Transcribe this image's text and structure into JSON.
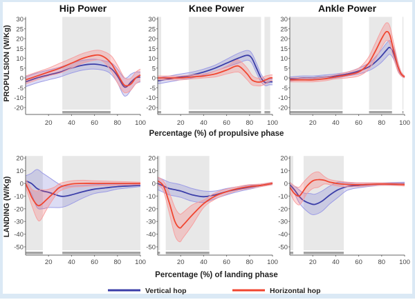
{
  "chart_data": [
    {
      "type": "line",
      "title": "Hip Power",
      "row": "propulsion",
      "ylabel": "PROPULSION (W/Kg)",
      "xlabel": "Percentage (%) of propulsive phase",
      "xlim": [
        0,
        100
      ],
      "yticks": [
        30,
        25,
        20,
        15,
        10,
        5,
        0,
        -5,
        -10,
        -20
      ],
      "xticks": [
        20,
        40,
        60,
        80,
        100
      ],
      "shaded_regions": [
        [
          32,
          74
        ]
      ],
      "series": [
        {
          "name": "Vertical hop",
          "x": [
            0,
            10,
            20,
            30,
            40,
            50,
            60,
            70,
            75,
            80,
            85,
            88,
            92,
            96,
            100
          ],
          "y": [
            -2,
            0,
            1.5,
            3,
            5,
            6.5,
            7,
            6,
            4.5,
            1,
            -4,
            -4.5,
            -2,
            0,
            0.5
          ],
          "sd": [
            2.5,
            2.5,
            2.5,
            2.5,
            2.5,
            2.5,
            2.5,
            2.5,
            3,
            3.5,
            4.5,
            4.5,
            4,
            3,
            2.5
          ]
        },
        {
          "name": "Horizontal hop",
          "x": [
            0,
            10,
            20,
            30,
            40,
            50,
            60,
            65,
            70,
            75,
            80,
            85,
            88,
            92,
            96,
            100
          ],
          "y": [
            -1,
            1,
            3,
            5,
            7.5,
            10,
            11.5,
            11.5,
            10,
            7,
            2,
            -3,
            -4,
            -3,
            0,
            1.5
          ],
          "sd": [
            2,
            2,
            2,
            2.5,
            2.5,
            2.5,
            2.5,
            2.5,
            3,
            4,
            4.5,
            4,
            3.5,
            3,
            3,
            3
          ]
        }
      ]
    },
    {
      "type": "line",
      "title": "Knee Power",
      "row": "propulsion",
      "xlim": [
        0,
        100
      ],
      "yticks": [
        30,
        25,
        20,
        15,
        10,
        5,
        0,
        -5,
        -10,
        -20
      ],
      "xticks": [
        20,
        40,
        60,
        80,
        100
      ],
      "shaded_regions": [
        [
          0,
          3
        ],
        [
          27,
          90
        ],
        [
          93,
          98
        ]
      ],
      "series": [
        {
          "name": "Vertical hop",
          "x": [
            0,
            10,
            20,
            30,
            40,
            50,
            60,
            70,
            78,
            82,
            86,
            90,
            94,
            97,
            100
          ],
          "y": [
            -1.5,
            -0.5,
            0.5,
            1.5,
            3,
            5,
            7.5,
            10,
            11.5,
            10,
            5,
            0,
            -2.5,
            -2,
            -2
          ],
          "sd": [
            1.5,
            1.5,
            1.5,
            1.5,
            1.5,
            1.5,
            2,
            2.5,
            2.5,
            2.5,
            2.5,
            2,
            1.5,
            1.5,
            1.5
          ]
        },
        {
          "name": "Horizontal hop",
          "x": [
            0,
            10,
            20,
            30,
            40,
            50,
            60,
            68,
            72,
            78,
            82,
            86,
            90,
            94,
            98,
            100
          ],
          "y": [
            0,
            0,
            0,
            0.5,
            1,
            2,
            4,
            6,
            5.5,
            2,
            -1,
            -2,
            -2,
            -1,
            0,
            0
          ],
          "sd": [
            1,
            1,
            1,
            1,
            1,
            1.5,
            2,
            3,
            3,
            3,
            2.5,
            2,
            2,
            2,
            1.5,
            1.5
          ]
        }
      ]
    },
    {
      "type": "line",
      "title": "Ankle Power",
      "row": "propulsion",
      "xlim": [
        0,
        100
      ],
      "yticks": [
        30,
        25,
        20,
        15,
        10,
        5,
        0,
        -5,
        -10,
        -20
      ],
      "xticks": [
        20,
        40,
        60,
        80,
        100
      ],
      "shaded_regions": [
        [
          0,
          46
        ],
        [
          69,
          89
        ],
        [
          98,
          99
        ]
      ],
      "series": [
        {
          "name": "Vertical hop",
          "x": [
            0,
            10,
            20,
            30,
            40,
            50,
            60,
            70,
            78,
            84,
            87,
            90,
            94,
            97,
            100
          ],
          "y": [
            -0.5,
            0,
            0,
            0.5,
            1,
            2,
            3.5,
            6,
            10,
            14,
            15.5,
            13,
            6,
            2,
            0.5
          ],
          "sd": [
            1,
            1,
            1,
            1,
            1,
            1,
            1.5,
            2,
            3,
            3.5,
            3.5,
            3,
            2,
            1,
            0.5
          ]
        },
        {
          "name": "Horizontal hop",
          "x": [
            0,
            10,
            20,
            30,
            40,
            50,
            60,
            68,
            74,
            80,
            84,
            87,
            90,
            94,
            97,
            100
          ],
          "y": [
            -1,
            -1,
            -1,
            -0.5,
            0.5,
            1.5,
            3,
            7,
            13,
            20,
            23.5,
            22,
            15,
            6,
            2,
            0.5
          ],
          "sd": [
            1,
            1,
            1,
            1,
            1,
            1.5,
            2,
            3,
            4,
            4.5,
            4.5,
            4.5,
            4,
            2.5,
            1,
            0.5
          ]
        }
      ]
    },
    {
      "type": "line",
      "row": "landing",
      "ylabel": "LANDING (W/Kg)",
      "xlim": [
        0,
        100
      ],
      "yticks": [
        20,
        10,
        0,
        -10,
        -20,
        -30,
        -40,
        -50
      ],
      "xticks": [
        20,
        40,
        60,
        80,
        100
      ],
      "shaded_regions": [
        [
          0,
          15
        ],
        [
          32,
          100
        ]
      ],
      "series": [
        {
          "name": "Vertical hop",
          "x": [
            0,
            5,
            10,
            15,
            20,
            30,
            35,
            40,
            50,
            60,
            70,
            80,
            90,
            100
          ],
          "y": [
            2,
            0,
            -4,
            -6,
            -7,
            -10,
            -10,
            -9,
            -6.5,
            -4.5,
            -3.5,
            -2.5,
            -2,
            -1.5
          ],
          "sd": [
            4,
            8,
            15,
            14,
            12,
            9,
            8,
            7,
            5,
            3.5,
            3,
            2,
            1.5,
            1
          ]
        },
        {
          "name": "Horizontal hop",
          "x": [
            0,
            3,
            6,
            10,
            13,
            18,
            25,
            30,
            40,
            50,
            60,
            80,
            100
          ],
          "y": [
            0,
            -6,
            -12,
            -17,
            -17,
            -13,
            -7,
            -3,
            -0.5,
            0,
            0,
            0,
            0
          ],
          "sd": [
            3,
            5,
            7,
            11,
            12,
            8,
            4,
            3,
            2.5,
            2.5,
            2,
            1.5,
            1
          ]
        }
      ]
    },
    {
      "type": "line",
      "row": "landing",
      "xlabel": "Percentage (%) of landing phase",
      "xlim": [
        0,
        100
      ],
      "yticks": [
        20,
        10,
        0,
        -10,
        -20,
        -30,
        -40,
        -50
      ],
      "xticks": [
        20,
        40,
        60,
        80,
        100
      ],
      "shaded_regions": [
        [
          0,
          2
        ],
        [
          7,
          45
        ]
      ],
      "series": [
        {
          "name": "Vertical hop",
          "x": [
            0,
            5,
            10,
            20,
            30,
            40,
            50,
            60,
            70,
            80,
            90,
            100
          ],
          "y": [
            0,
            -2,
            -4,
            -6,
            -9,
            -10.5,
            -9,
            -6.5,
            -4.5,
            -3,
            -1.5,
            0
          ],
          "sd": [
            5,
            5,
            5,
            5,
            5,
            4.5,
            3,
            2.5,
            2,
            1.5,
            1,
            1
          ]
        },
        {
          "name": "Horizontal hop",
          "x": [
            0,
            5,
            10,
            15,
            19,
            22,
            30,
            40,
            50,
            60,
            70,
            80,
            90,
            100
          ],
          "y": [
            2,
            -2,
            -15,
            -30,
            -35,
            -33,
            -25,
            -16,
            -10,
            -6.5,
            -4,
            -2.5,
            -1.5,
            0
          ],
          "sd": [
            3,
            4,
            8,
            11,
            11,
            10,
            8,
            3,
            2.5,
            2,
            1.5,
            1.5,
            1,
            1
          ]
        }
      ]
    },
    {
      "type": "line",
      "row": "landing",
      "xlim": [
        0,
        100
      ],
      "yticks": [
        20,
        10,
        0,
        -10,
        -20,
        -30,
        -40,
        -50
      ],
      "xticks": [
        20,
        40,
        60,
        80,
        100
      ],
      "shaded_regions": [
        [
          0,
          3
        ],
        [
          12,
          47
        ]
      ],
      "series": [
        {
          "name": "Vertical hop",
          "x": [
            0,
            4,
            8,
            12,
            18,
            22,
            28,
            35,
            42,
            50,
            60,
            80,
            100
          ],
          "y": [
            -1,
            -5,
            -10,
            -13.5,
            -16,
            -16.5,
            -14,
            -9,
            -5,
            -2.5,
            -1.5,
            -0.5,
            0
          ],
          "sd": [
            2,
            3,
            5,
            6,
            8,
            8,
            8,
            7,
            6,
            3,
            2,
            1,
            1
          ]
        },
        {
          "name": "Horizontal hop",
          "x": [
            0,
            4,
            8,
            11,
            15,
            20,
            25,
            30,
            35,
            45,
            60,
            80,
            100
          ],
          "y": [
            -3,
            -8,
            -10,
            -7,
            -2,
            2,
            3,
            2.5,
            1,
            -0.5,
            -1,
            -0.5,
            -1
          ],
          "sd": [
            4,
            6,
            7,
            7,
            6,
            6,
            6,
            3,
            2,
            2,
            1.5,
            1,
            1
          ]
        }
      ]
    }
  ],
  "xlabel_top": "Percentage (%) of propulsive phase",
  "legend": {
    "vertical": "Vertical hop",
    "horizontal": "Horizontal hop"
  },
  "colors": {
    "vertical": "#3a3da8",
    "horizontal": "#f0452f",
    "shaded": "#e8e8e8",
    "frame": "#dbe9f5"
  }
}
